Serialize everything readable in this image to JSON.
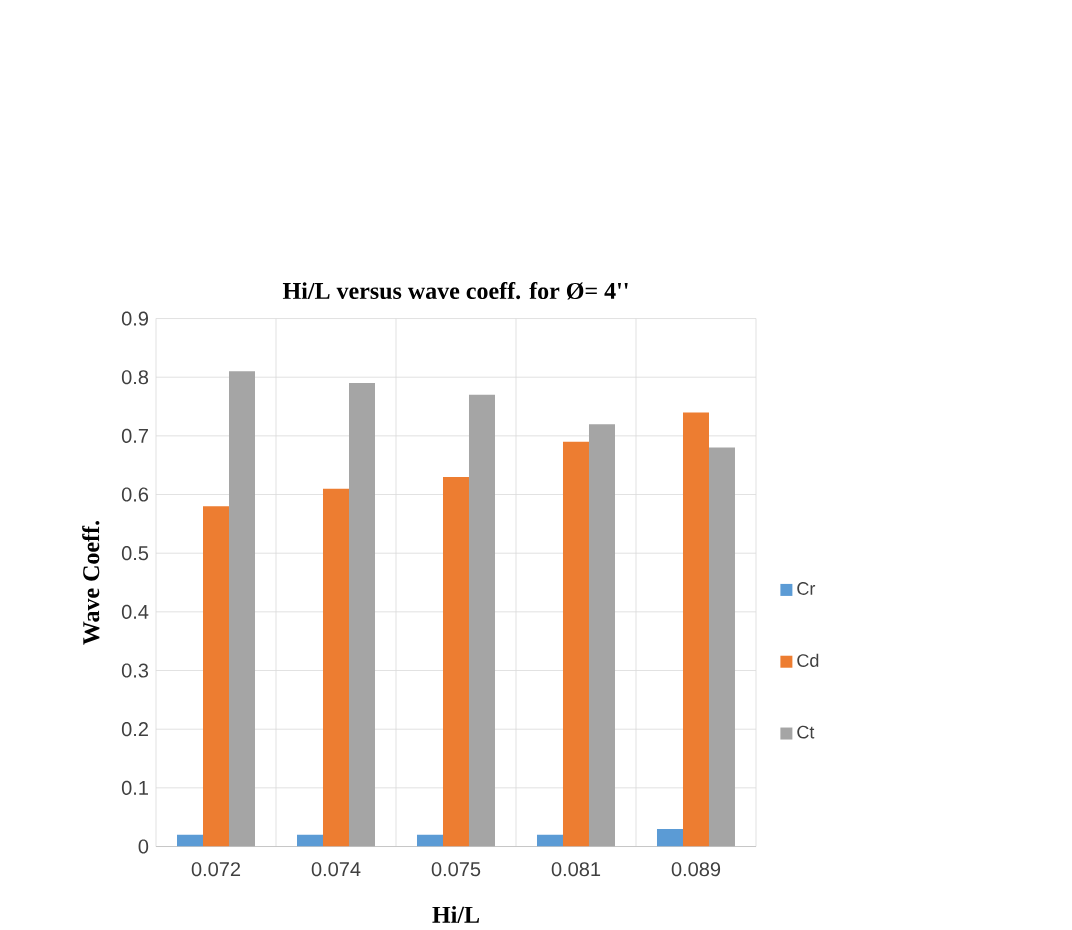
{
  "chart_data": {
    "type": "bar",
    "title": "Hi/L versus wave coeff. for Ø= 4''",
    "xlabel": "Hi/L",
    "ylabel": "Wave Coeff.",
    "categories": [
      "0.072",
      "0.074",
      "0.075",
      "0.081",
      "0.089"
    ],
    "series": [
      {
        "name": "Cr",
        "color": "#5b9bd5",
        "values": [
          0.02,
          0.02,
          0.02,
          0.02,
          0.03
        ]
      },
      {
        "name": "Cd",
        "color": "#ed7d31",
        "values": [
          0.58,
          0.61,
          0.63,
          0.69,
          0.74
        ]
      },
      {
        "name": "Ct",
        "color": "#a5a5a5",
        "values": [
          0.81,
          0.79,
          0.77,
          0.72,
          0.68
        ]
      }
    ],
    "ylim": [
      0,
      0.9
    ],
    "yticks": [
      0,
      0.1,
      0.2,
      0.3,
      0.4,
      0.5,
      0.6,
      0.7,
      0.8,
      0.9
    ],
    "grid": true,
    "legend": "right"
  }
}
